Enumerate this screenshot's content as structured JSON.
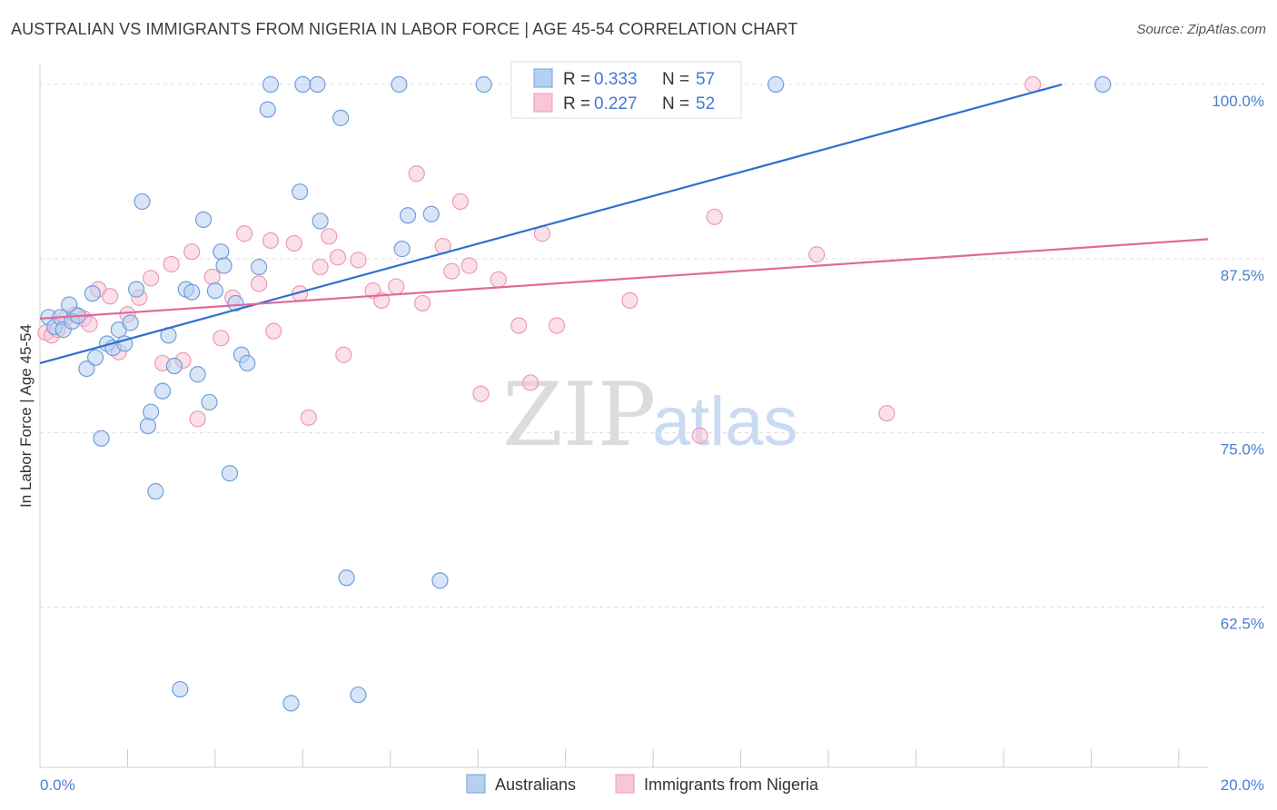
{
  "header": {
    "title": "AUSTRALIAN VS IMMIGRANTS FROM NIGERIA IN LABOR FORCE | AGE 45-54 CORRELATION CHART",
    "source": "Source: ZipAtlas.com"
  },
  "watermark": {
    "zip": "ZIP",
    "atlas": "atlas"
  },
  "colors": {
    "blue_fill": "#b8d0f0",
    "blue_stroke": "#6f9fde",
    "blue_line": "#2f6fcf",
    "pink_fill": "#f8c6d6",
    "pink_stroke": "#ec9ab6",
    "pink_line": "#e0699a",
    "tick_text": "#4a7fd0",
    "grid": "#dddddd"
  },
  "legend": {
    "rows": [
      {
        "r_label": "R = ",
        "r_value": "0.333",
        "n_label": "N = ",
        "n_value": "57"
      },
      {
        "r_label": "R = ",
        "r_value": "0.227",
        "n_label": "N = ",
        "n_value": "52"
      }
    ]
  },
  "chart_data": {
    "type": "scatter",
    "title": "AUSTRALIAN VS IMMIGRANTS FROM NIGERIA IN LABOR FORCE | AGE 45-54 CORRELATION CHART",
    "xlabel": "",
    "ylabel": "In Labor Force | Age 45-54",
    "xlim": [
      0,
      20
    ],
    "ylim": [
      51,
      101.5
    ],
    "x_tick_labels": [
      {
        "value": 0,
        "label": "0.0%"
      },
      {
        "value": 20,
        "label": "20.0%"
      }
    ],
    "y_tick_labels": [
      {
        "value": 62.5,
        "label": "62.5%"
      },
      {
        "value": 75.0,
        "label": "75.0%"
      },
      {
        "value": 87.5,
        "label": "87.5%"
      },
      {
        "value": 100.0,
        "label": "100.0%"
      }
    ],
    "grid": true,
    "legend_position": "bottom",
    "series": [
      {
        "name": "Australians",
        "r": 0.333,
        "n": 57,
        "trend": {
          "x0": 0,
          "y0": 80.0,
          "x1": 17.5,
          "y1": 100.0
        },
        "points": [
          [
            0.15,
            83.3
          ],
          [
            0.25,
            82.6
          ],
          [
            0.35,
            83.3
          ],
          [
            0.4,
            82.4
          ],
          [
            0.5,
            84.2
          ],
          [
            0.55,
            83.0
          ],
          [
            0.65,
            83.4
          ],
          [
            0.8,
            79.6
          ],
          [
            0.9,
            85.0
          ],
          [
            0.95,
            80.4
          ],
          [
            1.05,
            74.6
          ],
          [
            1.15,
            81.4
          ],
          [
            1.25,
            81.1
          ],
          [
            1.35,
            82.4
          ],
          [
            1.45,
            81.4
          ],
          [
            1.55,
            82.9
          ],
          [
            1.65,
            85.3
          ],
          [
            1.75,
            91.6
          ],
          [
            1.85,
            75.5
          ],
          [
            1.9,
            76.5
          ],
          [
            1.98,
            70.8
          ],
          [
            2.1,
            78.0
          ],
          [
            2.2,
            82.0
          ],
          [
            2.3,
            79.8
          ],
          [
            2.4,
            56.6
          ],
          [
            2.5,
            85.3
          ],
          [
            2.6,
            85.1
          ],
          [
            2.7,
            79.2
          ],
          [
            2.8,
            90.3
          ],
          [
            2.9,
            77.2
          ],
          [
            3.0,
            85.2
          ],
          [
            3.1,
            88.0
          ],
          [
            3.15,
            87.0
          ],
          [
            3.25,
            72.1
          ],
          [
            3.35,
            84.3
          ],
          [
            3.45,
            80.6
          ],
          [
            3.55,
            80.0
          ],
          [
            3.75,
            86.9
          ],
          [
            3.9,
            98.2
          ],
          [
            3.95,
            100.0
          ],
          [
            4.3,
            55.6
          ],
          [
            4.45,
            92.3
          ],
          [
            4.5,
            100.0
          ],
          [
            4.75,
            100.0
          ],
          [
            4.8,
            90.2
          ],
          [
            5.15,
            97.6
          ],
          [
            5.25,
            64.6
          ],
          [
            5.45,
            56.2
          ],
          [
            6.15,
            100.0
          ],
          [
            6.2,
            88.2
          ],
          [
            6.3,
            90.6
          ],
          [
            6.7,
            90.7
          ],
          [
            6.85,
            64.4
          ],
          [
            7.6,
            100.0
          ],
          [
            12.6,
            100.0
          ],
          [
            18.2,
            100.0
          ]
        ]
      },
      {
        "name": "Immigrants from Nigeria",
        "r": 0.227,
        "n": 52,
        "trend": {
          "x0": 0,
          "y0": 83.2,
          "x1": 20,
          "y1": 88.9
        },
        "points": [
          [
            0.1,
            82.2
          ],
          [
            0.2,
            82.0
          ],
          [
            0.3,
            82.4
          ],
          [
            0.45,
            83.3
          ],
          [
            0.6,
            83.5
          ],
          [
            0.75,
            83.2
          ],
          [
            0.85,
            82.8
          ],
          [
            1.0,
            85.3
          ],
          [
            1.2,
            84.8
          ],
          [
            1.35,
            80.8
          ],
          [
            1.5,
            83.5
          ],
          [
            1.7,
            84.7
          ],
          [
            1.9,
            86.1
          ],
          [
            2.1,
            80.0
          ],
          [
            2.25,
            87.1
          ],
          [
            2.45,
            80.2
          ],
          [
            2.6,
            88.0
          ],
          [
            2.7,
            76.0
          ],
          [
            2.95,
            86.2
          ],
          [
            3.1,
            81.8
          ],
          [
            3.3,
            84.7
          ],
          [
            3.5,
            89.3
          ],
          [
            3.75,
            85.7
          ],
          [
            3.95,
            88.8
          ],
          [
            4.0,
            82.3
          ],
          [
            4.35,
            88.6
          ],
          [
            4.45,
            85.0
          ],
          [
            4.6,
            76.1
          ],
          [
            4.8,
            86.9
          ],
          [
            4.95,
            89.1
          ],
          [
            5.1,
            87.6
          ],
          [
            5.2,
            80.6
          ],
          [
            5.45,
            87.4
          ],
          [
            5.7,
            85.2
          ],
          [
            5.85,
            84.5
          ],
          [
            6.1,
            85.5
          ],
          [
            6.45,
            93.6
          ],
          [
            6.55,
            84.3
          ],
          [
            6.9,
            88.4
          ],
          [
            7.05,
            86.6
          ],
          [
            7.2,
            91.6
          ],
          [
            7.35,
            87.0
          ],
          [
            7.55,
            77.8
          ],
          [
            7.85,
            86.0
          ],
          [
            8.2,
            82.7
          ],
          [
            8.4,
            78.6
          ],
          [
            8.6,
            89.3
          ],
          [
            8.85,
            82.7
          ],
          [
            10.1,
            84.5
          ],
          [
            11.3,
            74.8
          ],
          [
            11.55,
            90.5
          ],
          [
            13.3,
            87.8
          ],
          [
            14.5,
            76.4
          ],
          [
            17.0,
            100.0
          ]
        ]
      }
    ]
  },
  "bottom_legend": {
    "items": [
      {
        "label": "Australians"
      },
      {
        "label": "Immigrants from Nigeria"
      }
    ]
  }
}
